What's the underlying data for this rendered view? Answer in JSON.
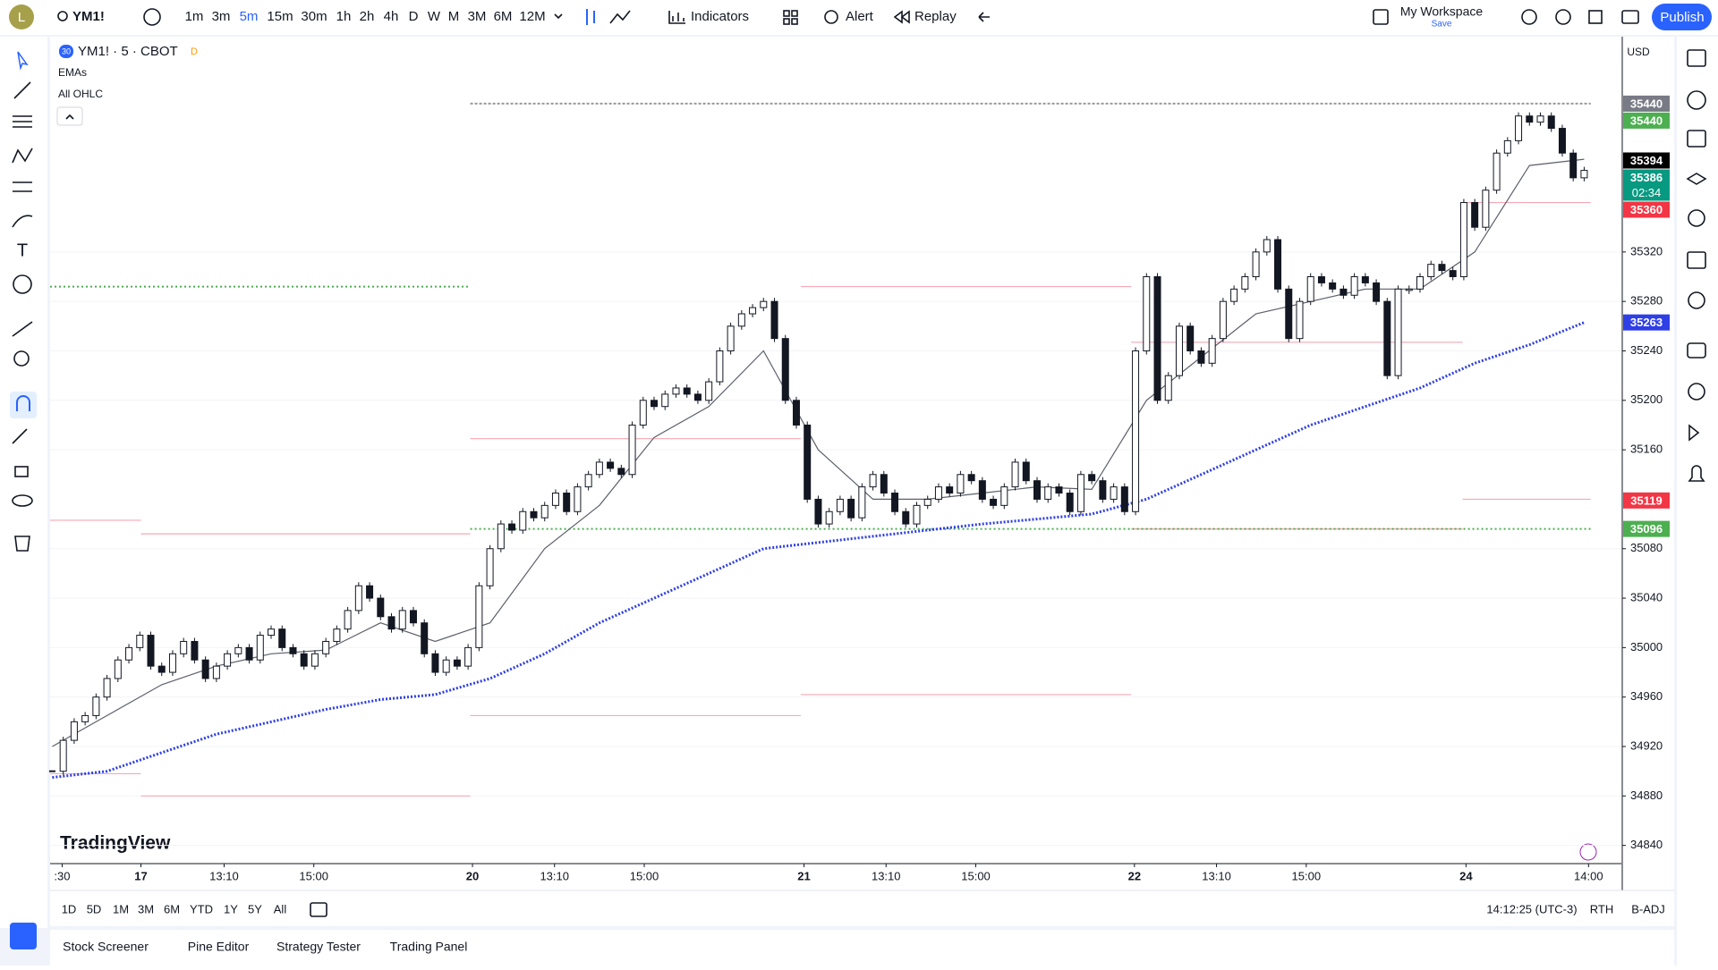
{
  "toolbar": {
    "avatar": "L",
    "symbol": "YM1!",
    "intervals": [
      "1m",
      "3m",
      "5m",
      "15m",
      "30m",
      "1h",
      "2h",
      "4h",
      "D",
      "W",
      "M",
      "3M",
      "6M",
      "12M"
    ],
    "indicators": "Indicators",
    "alert": "Alert",
    "replay": "Replay",
    "workspace": "My Workspace",
    "save": "Save",
    "publish": "Publish"
  },
  "legend": {
    "badge": "30",
    "symbol": "YM1! · 5 · CBOT",
    "flag": "D",
    "studies": [
      "EMAs",
      "All OHLC"
    ]
  },
  "logo": "TradingView",
  "currency": "USD",
  "chart_data": {
    "type": "candlestick",
    "closes": [
      34900,
      34925,
      34940,
      34945,
      34960,
      34975,
      34990,
      35000,
      35010,
      34985,
      34980,
      34995,
      35005,
      34990,
      34975,
      34985,
      34995,
      35000,
      34990,
      35010,
      35015,
      35000,
      34995,
      34985,
      34995,
      35005,
      35015,
      35030,
      35050,
      35040,
      35025,
      35015,
      35030,
      35020,
      34995,
      34980,
      34990,
      34985,
      35000,
      35050,
      35080,
      35100,
      35095,
      35110,
      35105,
      35115,
      35125,
      35110,
      35130,
      35140,
      35150,
      35145,
      35140,
      35180,
      35200,
      35195,
      35205,
      35210,
      35205,
      35200,
      35215,
      35240,
      35260,
      35270,
      35275,
      35280,
      35250,
      35200,
      35180,
      35120,
      35100,
      35110,
      35120,
      35105,
      35130,
      35140,
      35125,
      35110,
      35100,
      35115,
      35120,
      35130,
      35125,
      35140,
      35135,
      35120,
      35115,
      35130,
      35150,
      35135,
      35120,
      35130,
      35125,
      35110,
      35140,
      35135,
      35120,
      35130,
      35110,
      35240,
      35300,
      35200,
      35220,
      35260,
      35240,
      35230,
      35250,
      35280,
      35290,
      35300,
      35320,
      35330,
      35290,
      35250,
      35280,
      35300,
      35295,
      35290,
      35285,
      35300,
      35295,
      35280,
      35220,
      35290,
      35290,
      35300,
      35310,
      35305,
      35300,
      35360,
      35340,
      35370,
      35400,
      35410,
      35430,
      35425,
      35430,
      35420,
      35400,
      35380,
      35386
    ],
    "lines": [
      {
        "color": "#5d606b",
        "width": 1.2,
        "x": [
          0,
          5,
          10,
          15,
          20,
          25,
          30,
          35,
          40,
          45,
          50,
          55,
          60,
          65,
          70,
          75,
          80,
          85,
          90,
          95,
          100,
          105,
          110,
          115,
          120,
          125,
          130,
          135,
          140
        ],
        "values": [
          34920,
          34945,
          34970,
          34985,
          34995,
          34998,
          35020,
          35005,
          35020,
          35080,
          35115,
          35170,
          35195,
          35240,
          35160,
          35120,
          35120,
          35125,
          35130,
          35128,
          35200,
          35235,
          35270,
          35280,
          35290,
          35290,
          35320,
          35390,
          35395
        ]
      },
      {
        "color": "#2f3fe6",
        "width": 3,
        "dash": "2 2",
        "x": [
          0,
          5,
          10,
          15,
          20,
          25,
          30,
          35,
          40,
          45,
          50,
          55,
          60,
          65,
          70,
          75,
          80,
          85,
          90,
          95,
          100,
          105,
          110,
          115,
          120,
          125,
          130,
          135,
          140
        ],
        "values": [
          34895,
          34900,
          34915,
          34930,
          34940,
          34950,
          34958,
          34962,
          34975,
          34995,
          35020,
          35040,
          35060,
          35080,
          35085,
          35090,
          35095,
          35100,
          35104,
          35108,
          35120,
          35140,
          35160,
          35180,
          35195,
          35210,
          35230,
          35245,
          35263
        ]
      }
    ],
    "levels": [
      {
        "from": -0.2,
        "to": 8.1,
        "value": 35103,
        "color": "#f7a7b5"
      },
      {
        "from": 8.1,
        "to": 38.2,
        "value": 35092,
        "color": "#f7a7b5"
      },
      {
        "from": 38.2,
        "to": 68.4,
        "value": 35169,
        "color": "#f7a7b5"
      },
      {
        "from": 68.4,
        "to": 98.6,
        "value": 35292,
        "color": "#f7a7b5"
      },
      {
        "from": 98.6,
        "to": 128.9,
        "value": 35247,
        "color": "#f7a7b5"
      },
      {
        "from": 128.9,
        "to": 140.6,
        "value": 35120,
        "color": "#f7a7b5"
      },
      {
        "from": -0.2,
        "to": 8.1,
        "value": 34898,
        "color": "#f7a7b5"
      },
      {
        "from": 8.1,
        "to": 38.2,
        "value": 34880,
        "color": "#f7a7b5"
      },
      {
        "from": 38.2,
        "to": 68.4,
        "value": 34945,
        "color": "#f7a7b5"
      },
      {
        "from": 68.4,
        "to": 98.6,
        "value": 34962,
        "color": "#f7a7b5"
      },
      {
        "from": 98.6,
        "to": 128.9,
        "value": 35096,
        "color": "#f7a7b5"
      },
      {
        "from": 128.9,
        "to": 140.6,
        "value": 35360,
        "color": "#f7a7b5"
      },
      {
        "from": -0.2,
        "to": 38.2,
        "value": 35292,
        "color": "#4caf50",
        "dash": "2 3"
      },
      {
        "from": 38.2,
        "to": 140.6,
        "value": 35096,
        "color": "#4caf50",
        "dash": "2 3"
      },
      {
        "from": 38.2,
        "to": 140.6,
        "value": 35440,
        "color": "#9598a1",
        "dash": "3 2"
      }
    ],
    "xlim": [
      -0.2,
      143.4
    ],
    "ylim": [
      34826,
      35492
    ],
    "xticks": [
      {
        "value": 0.9,
        "label": ":30"
      },
      {
        "value": 8.1,
        "label": "17"
      },
      {
        "value": 15.7,
        "label": "13:10"
      },
      {
        "value": 23.9,
        "label": "15:00"
      },
      {
        "value": 38.4,
        "label": "20"
      },
      {
        "value": 45.9,
        "label": "13:10"
      },
      {
        "value": 54.1,
        "label": "15:00"
      },
      {
        "value": 68.7,
        "label": "21"
      },
      {
        "value": 76.2,
        "label": "13:10"
      },
      {
        "value": 84.4,
        "label": "15:00"
      },
      {
        "value": 98.9,
        "label": "22"
      },
      {
        "value": 106.4,
        "label": "13:10"
      },
      {
        "value": 114.6,
        "label": "15:00"
      },
      {
        "value": 129.2,
        "label": "24"
      },
      {
        "value": 140.4,
        "label": "14:00"
      }
    ],
    "yticks": [
      35320,
      35280,
      35240,
      35200,
      35160,
      35080,
      35040,
      35000,
      34960,
      34920,
      34880,
      34840
    ],
    "price_badges": [
      {
        "value": 35440,
        "color": "#787b86"
      },
      {
        "value": 35440,
        "color": "#4caf50"
      },
      {
        "value": 35394,
        "color": "#000000"
      },
      {
        "value": 35386,
        "color": "#089981",
        "sub": "02:34"
      },
      {
        "value": 35360,
        "color": "#f23645"
      },
      {
        "value": 35263,
        "color": "#2f3fe6"
      },
      {
        "value": 35119,
        "color": "#f23645"
      },
      {
        "value": 35096,
        "color": "#4caf50"
      }
    ]
  },
  "range_bar": {
    "ranges": [
      "1D",
      "5D",
      "1M",
      "3M",
      "6M",
      "YTD",
      "1Y",
      "5Y",
      "All"
    ],
    "clock": "14:12:25 (UTC-3)",
    "session": "RTH",
    "adjust": "B-ADJ"
  },
  "bottom_tabs": [
    "Stock Screener",
    "Pine Editor",
    "Strategy Tester",
    "Trading Panel"
  ]
}
